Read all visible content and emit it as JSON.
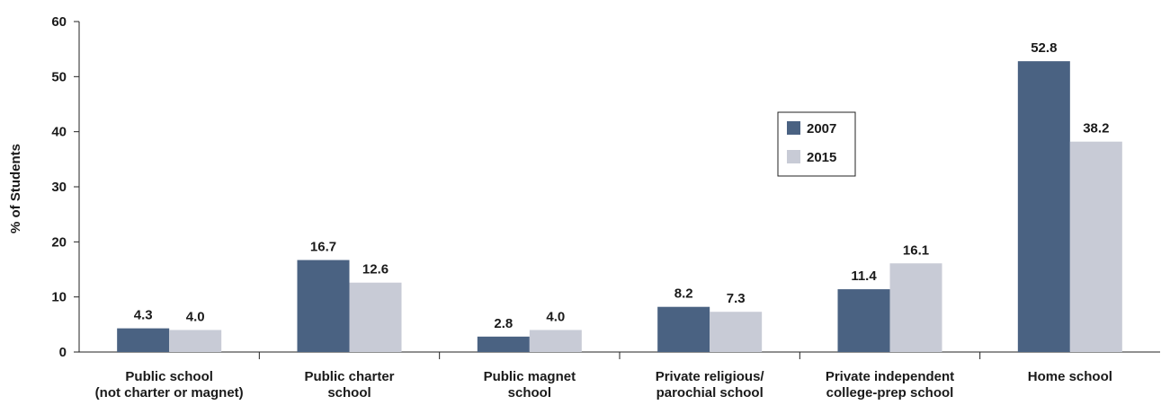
{
  "chart_data": {
    "type": "bar",
    "ylabel": "% of Students",
    "xlabel": "",
    "ylim": [
      0,
      60
    ],
    "yticks": [
      0,
      10,
      20,
      30,
      40,
      50,
      60
    ],
    "categories": [
      [
        "Public school",
        "(not charter or magnet)"
      ],
      [
        "Public charter",
        "school"
      ],
      [
        "Public magnet",
        "school"
      ],
      [
        "Private religious/",
        "parochial school"
      ],
      [
        "Private independent",
        "college-prep school"
      ],
      [
        "Home school"
      ]
    ],
    "series": [
      {
        "name": "2007",
        "color": "#4a6282",
        "values": [
          4.3,
          16.7,
          2.8,
          8.2,
          11.4,
          52.8
        ],
        "labels": [
          "4.3",
          "16.7",
          "2.8",
          "8.2",
          "11.4",
          "52.8"
        ]
      },
      {
        "name": "2015",
        "color": "#c8cbd6",
        "values": [
          4.0,
          12.6,
          4.0,
          7.3,
          16.1,
          38.2
        ],
        "labels": [
          "4.0",
          "12.6",
          "4.0",
          "7.3",
          "16.1",
          "38.2"
        ]
      }
    ],
    "legend_position": "center-right",
    "grid": false
  }
}
